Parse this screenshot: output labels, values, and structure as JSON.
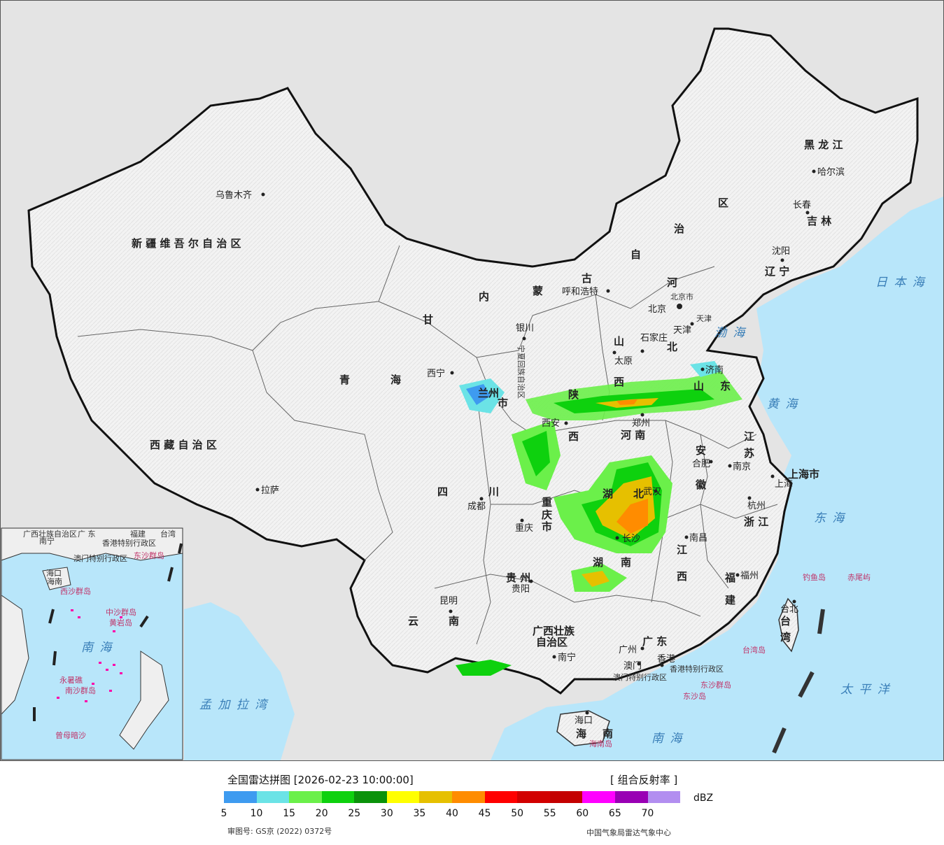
{
  "map": {
    "provinces": [
      {
        "name": "新 疆 维 吾 尔 自 治 区"
      },
      {
        "name": "西 藏 自 治 区"
      },
      {
        "name": "青"
      },
      {
        "name": "海"
      },
      {
        "name": "甘"
      },
      {
        "name": "四"
      },
      {
        "name": "川"
      },
      {
        "name": "云"
      },
      {
        "name": "南"
      },
      {
        "name": "内"
      },
      {
        "name": "蒙"
      },
      {
        "name": "古"
      },
      {
        "name": "自"
      },
      {
        "name": "治"
      },
      {
        "name": "区"
      },
      {
        "name": "黑 龙 江"
      },
      {
        "name": "吉 林"
      },
      {
        "name": "辽 宁"
      },
      {
        "name": "河"
      },
      {
        "name": "北"
      },
      {
        "name": "山"
      },
      {
        "name": "西"
      },
      {
        "name": "陕"
      },
      {
        "name": "西"
      },
      {
        "name": "河 南"
      },
      {
        "name": "山"
      },
      {
        "name": "东"
      },
      {
        "name": "江"
      },
      {
        "name": "苏"
      },
      {
        "name": "安"
      },
      {
        "name": "徽"
      },
      {
        "name": "浙 江"
      },
      {
        "name": "湖"
      },
      {
        "name": "北"
      },
      {
        "name": "湖"
      },
      {
        "name": "南"
      },
      {
        "name": "江"
      },
      {
        "name": "西"
      },
      {
        "name": "福"
      },
      {
        "name": "建"
      },
      {
        "name": "贵 州"
      },
      {
        "name": "重"
      },
      {
        "name": "庆"
      },
      {
        "name": "市"
      },
      {
        "name": "广西壮族"
      },
      {
        "name": "自治区"
      },
      {
        "name": "广 东"
      },
      {
        "name": "海"
      },
      {
        "name": "南"
      },
      {
        "name": "台"
      },
      {
        "name": "湾"
      },
      {
        "name": "上海市"
      },
      {
        "name": "北京市"
      },
      {
        "name": "天津"
      },
      {
        "name": "宁夏回族自治区"
      },
      {
        "name": "兰州"
      },
      {
        "name": "市"
      },
      {
        "name": "香港特别行政区"
      },
      {
        "name": "澳门特别行政区"
      }
    ],
    "cities": [
      {
        "name": "乌鲁木齐"
      },
      {
        "name": "拉萨"
      },
      {
        "name": "西宁"
      },
      {
        "name": "银川"
      },
      {
        "name": "呼和浩特"
      },
      {
        "name": "北京"
      },
      {
        "name": "天津"
      },
      {
        "name": "石家庄"
      },
      {
        "name": "太原"
      },
      {
        "name": "济南"
      },
      {
        "name": "郑州"
      },
      {
        "name": "西安"
      },
      {
        "name": "成都"
      },
      {
        "name": "重庆"
      },
      {
        "name": "贵阳"
      },
      {
        "name": "昆明"
      },
      {
        "name": "南宁"
      },
      {
        "name": "广州"
      },
      {
        "name": "澳门"
      },
      {
        "name": "香港"
      },
      {
        "name": "海口"
      },
      {
        "name": "长沙"
      },
      {
        "name": "武汉"
      },
      {
        "name": "南昌"
      },
      {
        "name": "合肥"
      },
      {
        "name": "南京"
      },
      {
        "name": "上海"
      },
      {
        "name": "杭州"
      },
      {
        "name": "福州"
      },
      {
        "name": "台北"
      },
      {
        "name": "哈尔滨"
      },
      {
        "name": "长春"
      },
      {
        "name": "沈阳"
      }
    ],
    "seas": [
      {
        "name": "日 本 海"
      },
      {
        "name": "渤 海"
      },
      {
        "name": "黄 海"
      },
      {
        "name": "东 海"
      },
      {
        "name": "太 平 洋"
      },
      {
        "name": "南 海"
      },
      {
        "name": "孟 加 拉 湾"
      }
    ],
    "islands": [
      {
        "name": "钓鱼岛"
      },
      {
        "name": "赤尾屿"
      },
      {
        "name": "台湾岛"
      },
      {
        "name": "东沙群岛"
      },
      {
        "name": "东沙岛"
      },
      {
        "name": "海南岛"
      }
    ],
    "inset": {
      "labels": [
        {
          "name": "广西壮族自治区"
        },
        {
          "name": "广 东"
        },
        {
          "name": "福建"
        },
        {
          "name": "台湾"
        },
        {
          "name": "香港特别行政区"
        },
        {
          "name": "澳门特别行政区"
        },
        {
          "name": "东沙群岛"
        },
        {
          "name": "海口"
        },
        {
          "name": "海南"
        },
        {
          "name": "西沙群岛"
        },
        {
          "name": "中沙群岛"
        },
        {
          "name": "黄岩岛"
        },
        {
          "name": "南 海"
        },
        {
          "name": "永暑礁"
        },
        {
          "name": "南沙群岛"
        },
        {
          "name": "曾母暗沙"
        },
        {
          "name": "南宁"
        }
      ]
    }
  },
  "legend": {
    "title": "全国雷达拼图 [2026-02-23 10:00:00]",
    "product": "[ 组合反射率 ]",
    "unit": "dBZ",
    "ticks": [
      "5",
      "10",
      "15",
      "20",
      "25",
      "30",
      "35",
      "40",
      "45",
      "50",
      "55",
      "60",
      "65",
      "70"
    ],
    "colors": [
      "#3e9bf0",
      "#6be3e6",
      "#6bf04a",
      "#0ed10e",
      "#0a920a",
      "#ffff00",
      "#e6c000",
      "#ff8c00",
      "#ff0000",
      "#d20000",
      "#c40000",
      "#ff00ff",
      "#9900b4",
      "#b28ef0"
    ],
    "approval": "审图号: GS京 (2022) 0372号",
    "producer": "中国气象局雷达气象中心"
  }
}
